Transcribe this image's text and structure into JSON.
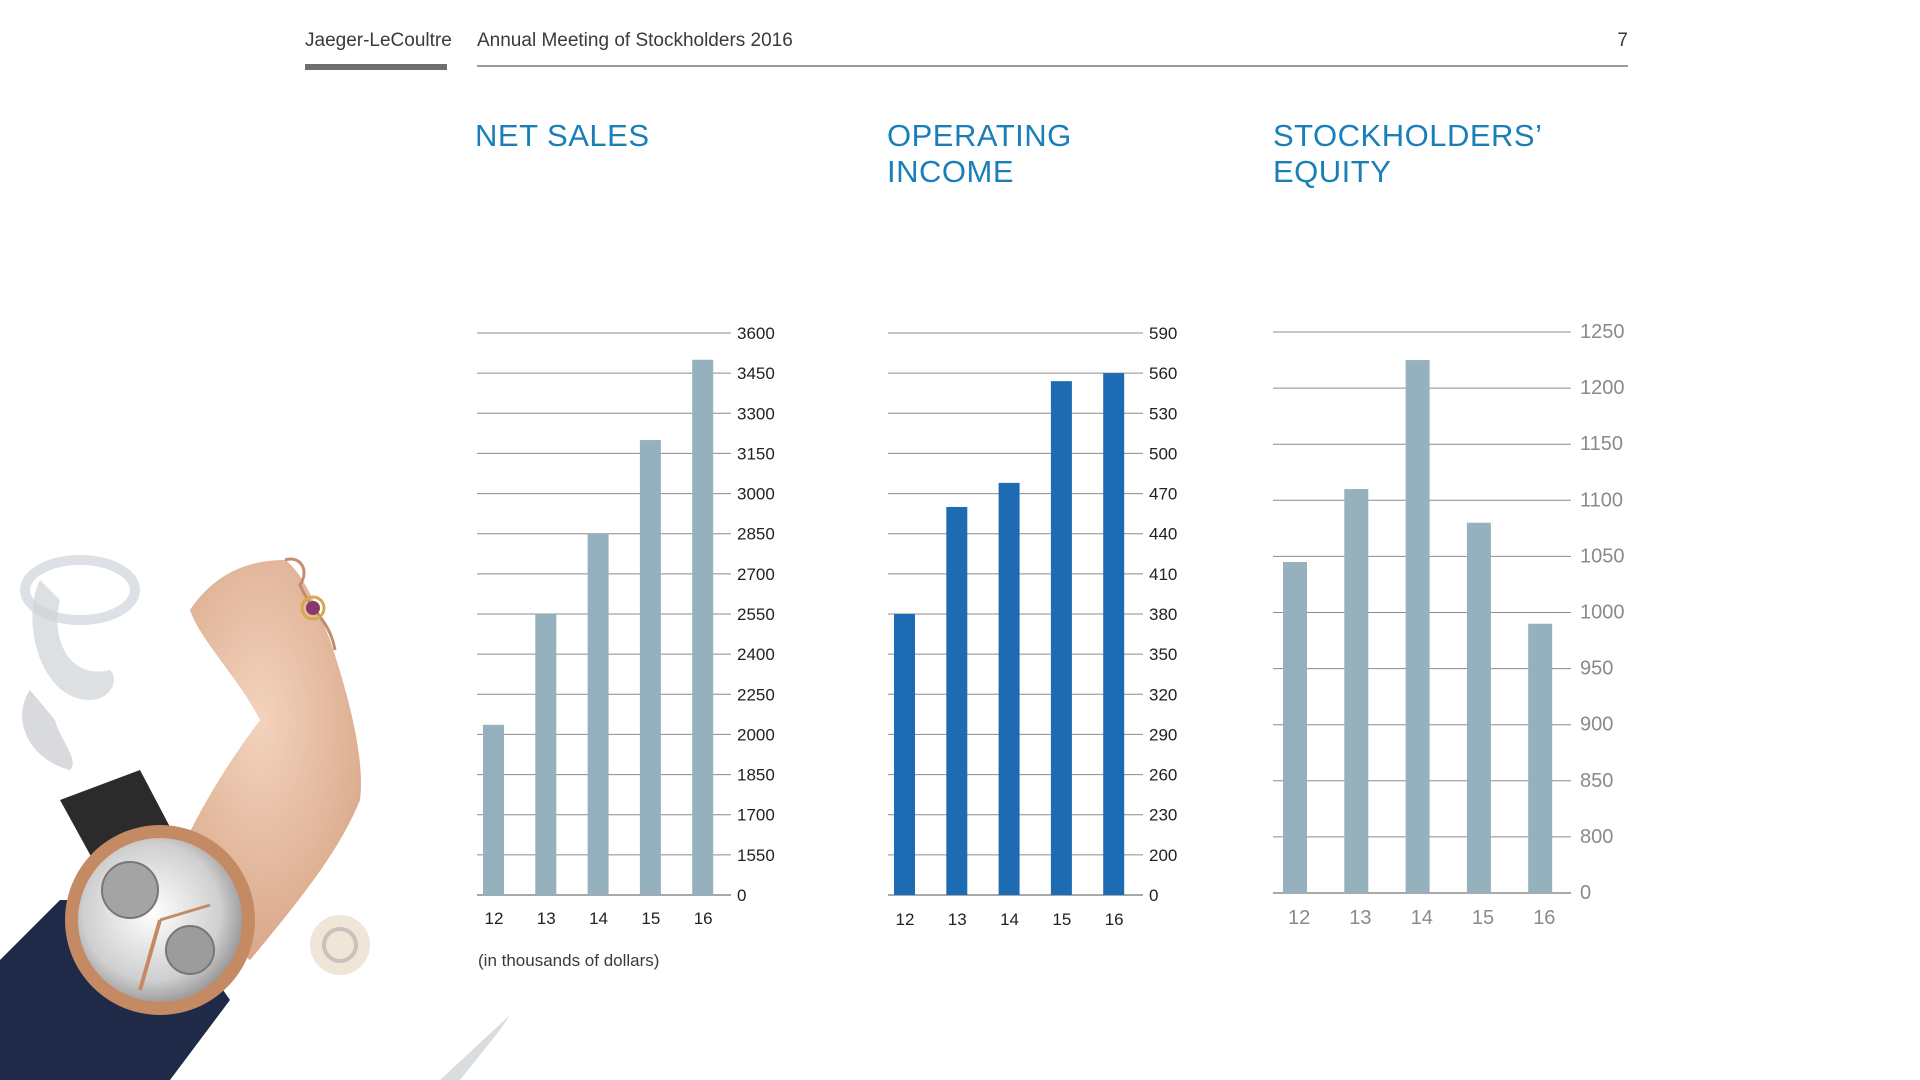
{
  "header": {
    "brand": "Jaeger-LeCoultre",
    "title": "Annual Meeting of Stockholders 2016",
    "page_number": "7"
  },
  "footnote": "(in thousands of dollars)",
  "colors": {
    "title": "#1a7fb8",
    "bar_light": "#95b1bd",
    "bar_dark": "#1c6bb3",
    "grid": "#8c8c8c"
  },
  "chart_data": [
    {
      "type": "bar",
      "title": "NET SALES",
      "categories": [
        "12",
        "13",
        "14",
        "15",
        "16"
      ],
      "values": [
        2060,
        2550,
        2850,
        3200,
        3500
      ],
      "y_ticks": [
        "0",
        "1550",
        "1700",
        "1850",
        "2000",
        "2250",
        "2400",
        "2550",
        "2700",
        "2850",
        "3000",
        "3150",
        "3300",
        "3450",
        "3600"
      ],
      "ylabel": "",
      "xlabel": "",
      "grid": true
    },
    {
      "type": "bar",
      "title": "OPERATING INCOME",
      "categories": [
        "12",
        "13",
        "14",
        "15",
        "16"
      ],
      "values": [
        380,
        460,
        478,
        554,
        560
      ],
      "y_ticks": [
        "0",
        "200",
        "230",
        "260",
        "290",
        "320",
        "350",
        "380",
        "410",
        "440",
        "470",
        "500",
        "530",
        "560",
        "590"
      ],
      "ylabel": "",
      "xlabel": "",
      "grid": true
    },
    {
      "type": "bar",
      "title": "STOCKHOLDERS’ EQUITY",
      "categories": [
        "12",
        "13",
        "14",
        "15",
        "16"
      ],
      "values": [
        1045,
        1110,
        1225,
        1080,
        990
      ],
      "y_ticks": [
        "0",
        "800",
        "850",
        "900",
        "950",
        "1000",
        "1050",
        "1100",
        "1150",
        "1200",
        "1250"
      ],
      "ylabel": "",
      "xlabel": "",
      "grid": true
    }
  ]
}
